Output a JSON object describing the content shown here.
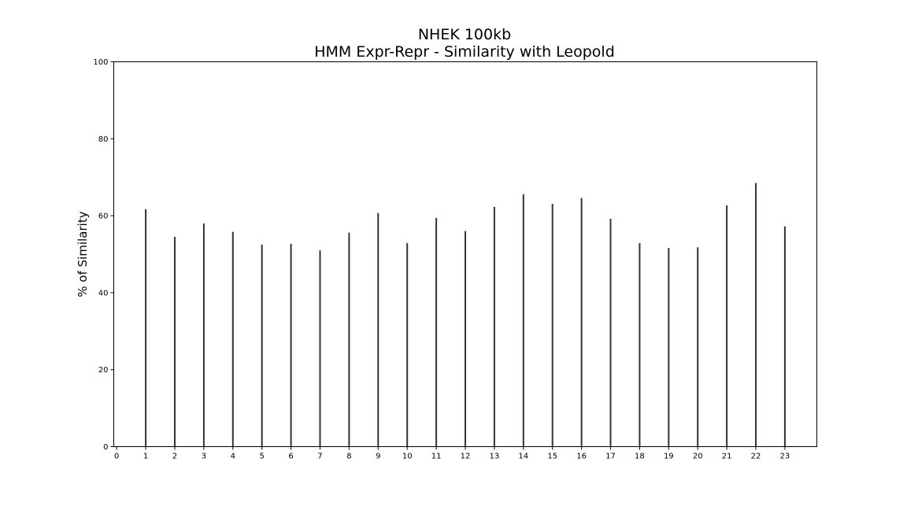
{
  "chart_data": {
    "type": "bar",
    "title_lines": [
      "NHEK 100kb",
      "HMM Expr-Repr - Similarity with Leopold"
    ],
    "xlabel": "",
    "ylabel": "% of Similarity",
    "xlim": [
      -0.1,
      24.1
    ],
    "ylim": [
      0,
      100
    ],
    "xticks": [
      0,
      1,
      2,
      3,
      4,
      5,
      6,
      7,
      8,
      9,
      10,
      11,
      12,
      13,
      14,
      15,
      16,
      17,
      18,
      19,
      20,
      21,
      22,
      23
    ],
    "yticks": [
      0,
      20,
      40,
      60,
      80,
      100
    ],
    "grid": false,
    "legend": "none",
    "bar_color": "#333333",
    "categories": [
      1,
      2,
      3,
      4,
      5,
      6,
      7,
      8,
      9,
      10,
      11,
      12,
      13,
      14,
      15,
      16,
      17,
      18,
      19,
      20,
      21,
      22,
      23
    ],
    "values": [
      61.7,
      54.5,
      58.0,
      55.8,
      52.5,
      52.7,
      51.0,
      55.6,
      60.7,
      52.9,
      59.4,
      56.0,
      62.3,
      65.6,
      63.1,
      64.6,
      59.2,
      52.9,
      51.6,
      51.8,
      62.7,
      68.5,
      57.2
    ]
  }
}
